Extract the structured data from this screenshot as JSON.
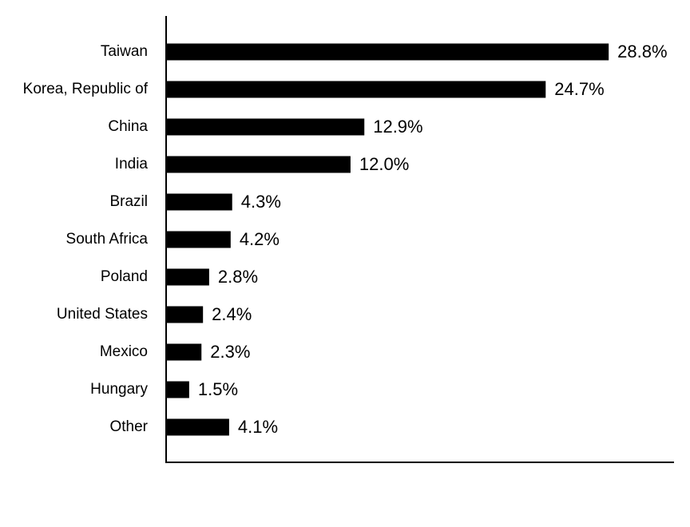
{
  "chart_data": {
    "type": "bar",
    "orientation": "horizontal",
    "categories": [
      "Taiwan",
      "Korea, Republic of",
      "China",
      "India",
      "Brazil",
      "South Africa",
      "Poland",
      "United States",
      "Mexico",
      "Hungary",
      "Other"
    ],
    "values": [
      28.8,
      24.7,
      12.9,
      12.0,
      4.3,
      4.2,
      2.8,
      2.4,
      2.3,
      1.5,
      4.1
    ],
    "value_labels": [
      "28.8%",
      "24.7%",
      "12.9%",
      "12.0%",
      "4.3%",
      "4.2%",
      "2.8%",
      "2.4%",
      "2.3%",
      "1.5%",
      "4.1%"
    ],
    "color": "#000000",
    "xlim": [
      0,
      33
    ]
  }
}
